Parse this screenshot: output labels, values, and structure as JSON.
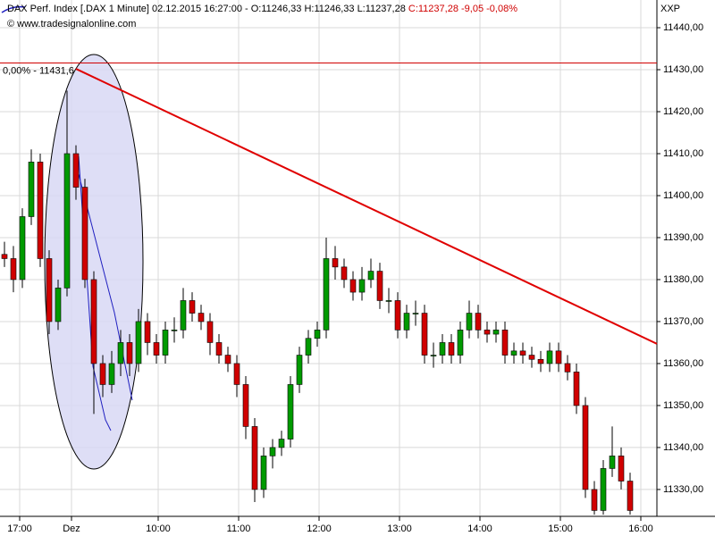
{
  "chart_data": {
    "type": "candlestick",
    "title": "DAX Perf. Index [.DAX  1 Minute] 02.12.2015 16:27:00 - O:11246,33 H:11246,33 L:11237,28",
    "title_change": "C:11237,28 -9,05 -0,08%",
    "subtitle": "© www.tradesignalonline.com",
    "axis_label": "XXP",
    "up_color": "#009a00",
    "down_color": "#d00000",
    "open": [
      11386,
      11385,
      11380,
      11395,
      11408,
      11385,
      11370,
      11378,
      11410,
      11402,
      11380,
      11360,
      11355,
      11360,
      11365,
      11360,
      11370,
      11365,
      11362,
      11368,
      11368,
      11375,
      11372,
      11370,
      11365,
      11362,
      11360,
      11355,
      11345,
      11330,
      11338,
      11340,
      11342,
      11355,
      11362,
      11366,
      11368,
      11385,
      11383,
      11380,
      11377,
      11380,
      11382,
      11375,
      11375,
      11368,
      11372,
      11372,
      11362,
      11362,
      11365,
      11362,
      11368,
      11372,
      11368,
      11367,
      11368,
      11362,
      11363,
      11362,
      11361,
      11360,
      11363,
      11360,
      11358,
      11350,
      11330,
      11325,
      11335,
      11338,
      11332
    ],
    "high": [
      11389,
      11388,
      11397,
      11411,
      11410,
      11387,
      11380,
      11425,
      11412,
      11404,
      11382,
      11362,
      11363,
      11368,
      11367,
      11373,
      11372,
      11367,
      11370,
      11371,
      11378,
      11377,
      11374,
      11372,
      11367,
      11364,
      11362,
      11357,
      11347,
      11340,
      11342,
      11344,
      11357,
      11364,
      11368,
      11370,
      11390,
      11388,
      11385,
      11382,
      11383,
      11385,
      11384,
      11378,
      11377,
      11374,
      11375,
      11374,
      11365,
      11367,
      11367,
      11370,
      11375,
      11374,
      11370,
      11370,
      11370,
      11365,
      11365,
      11364,
      11363,
      11365,
      11365,
      11362,
      11360,
      11352,
      11332,
      11337,
      11345,
      11340,
      11334
    ],
    "low": [
      11383,
      11377,
      11378,
      11393,
      11383,
      11367,
      11368,
      11376,
      11399,
      11378,
      11348,
      11352,
      11353,
      11357,
      11357,
      11358,
      11362,
      11360,
      11360,
      11365,
      11366,
      11370,
      11368,
      11362,
      11360,
      11358,
      11352,
      11342,
      11327,
      11328,
      11335,
      11338,
      11340,
      11353,
      11360,
      11364,
      11366,
      11380,
      11378,
      11375,
      11375,
      11378,
      11373,
      11372,
      11366,
      11366,
      11369,
      11360,
      11359,
      11360,
      11360,
      11360,
      11366,
      11366,
      11365,
      11365,
      11360,
      11360,
      11360,
      11359,
      11358,
      11358,
      11358,
      11356,
      11348,
      11328,
      11324,
      11324,
      11333,
      11330,
      11324
    ],
    "close": [
      11385,
      11380,
      11395,
      11408,
      11385,
      11370,
      11378,
      11410,
      11402,
      11380,
      11360,
      11355,
      11360,
      11365,
      11360,
      11370,
      11365,
      11362,
      11368,
      11368,
      11375,
      11372,
      11370,
      11365,
      11362,
      11360,
      11355,
      11345,
      11330,
      11338,
      11340,
      11342,
      11355,
      11362,
      11366,
      11368,
      11385,
      11383,
      11380,
      11377,
      11380,
      11382,
      11375,
      11375,
      11368,
      11372,
      11372,
      11362,
      11362,
      11365,
      11362,
      11368,
      11372,
      11368,
      11367,
      11368,
      11362,
      11363,
      11362,
      11361,
      11360,
      11363,
      11360,
      11358,
      11350,
      11330,
      11325,
      11335,
      11338,
      11332,
      11325
    ],
    "xlim": [
      0,
      73.5
    ],
    "ylim": [
      11323.6,
      11446.6
    ],
    "xticks": [
      {
        "value": 2.2,
        "label": "17:00"
      },
      {
        "value": 8.0,
        "label": "Dez"
      },
      {
        "value": 17.7,
        "label": "10:00"
      },
      {
        "value": 26.7,
        "label": "11:00"
      },
      {
        "value": 35.7,
        "label": "12:00"
      },
      {
        "value": 44.7,
        "label": "13:00"
      },
      {
        "value": 53.7,
        "label": "14:00"
      },
      {
        "value": 62.7,
        "label": "15:00"
      },
      {
        "value": 71.7,
        "label": "16:00"
      }
    ],
    "yticks": [
      {
        "value": 11330,
        "label": "11330,00"
      },
      {
        "value": 11340,
        "label": "11340,00"
      },
      {
        "value": 11350,
        "label": "11350,00"
      },
      {
        "value": 11360,
        "label": "11360,00"
      },
      {
        "value": 11370,
        "label": "11370,00"
      },
      {
        "value": 11380,
        "label": "11380,00"
      },
      {
        "value": 11390,
        "label": "11390,00"
      },
      {
        "value": 11400,
        "label": "11400,00"
      },
      {
        "value": 11410,
        "label": "11410,00"
      },
      {
        "value": 11420,
        "label": "11420,00"
      },
      {
        "value": 11430,
        "label": "11430,00"
      },
      {
        "value": 11440,
        "label": "11440,00"
      }
    ],
    "grid": true,
    "level_line": {
      "value": 11431.6,
      "label": "0,00% - 11431,6",
      "color": "#d00000"
    },
    "trendline": {
      "color": "#e00000",
      "x": [
        8.5,
        73.5
      ],
      "values": [
        11430.2,
        11364.7
      ]
    }
  }
}
